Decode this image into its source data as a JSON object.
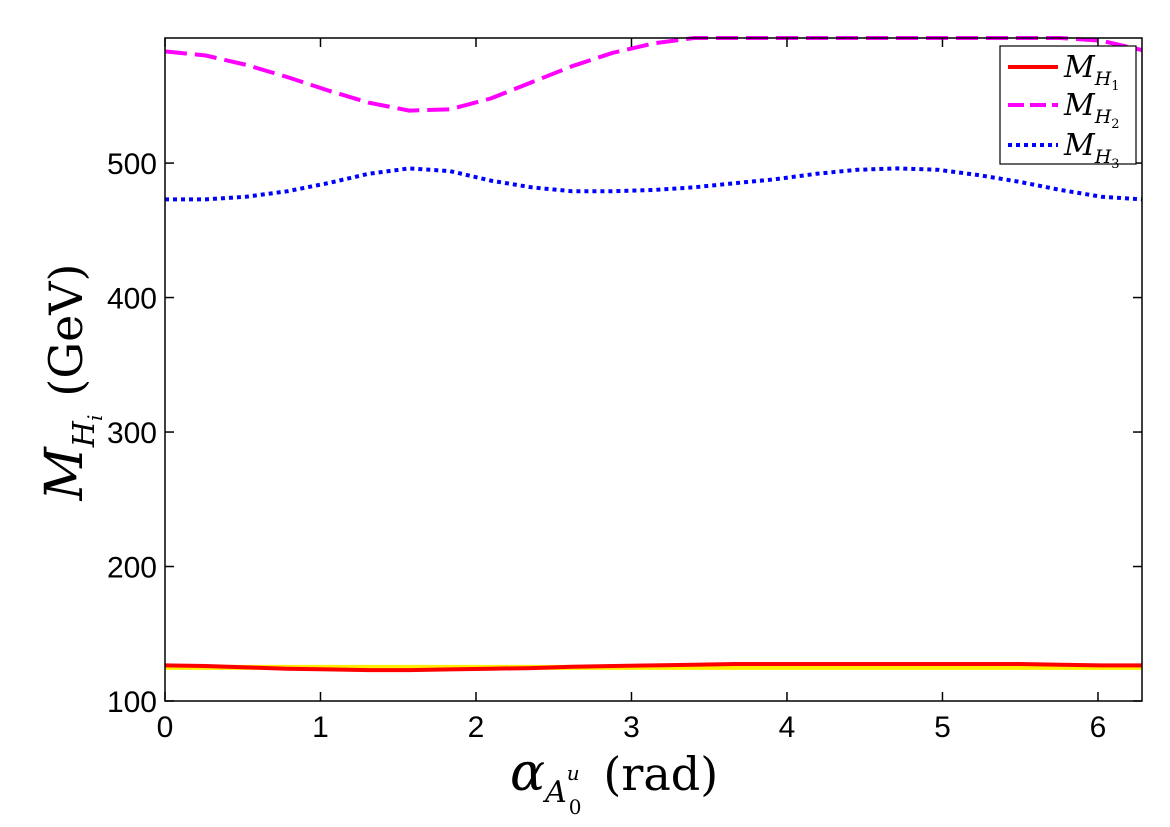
{
  "chart_data": {
    "type": "line",
    "title": "",
    "xlabel": {
      "base": "α",
      "sub": "A",
      "sup": "u",
      "subsub": "0",
      "unit": "(rad)"
    },
    "ylabel": {
      "base": "M",
      "sub": "H",
      "subsub": "i",
      "unit": "(GeV)"
    },
    "xlim": [
      0,
      6.2832
    ],
    "ylim": [
      100,
      593
    ],
    "x_ticks": [
      0,
      1,
      2,
      3,
      4,
      5,
      6
    ],
    "y_ticks": [
      100,
      200,
      300,
      400,
      500
    ],
    "grid": false,
    "legend_position": "top-right",
    "x": [
      0,
      0.2618,
      0.5236,
      0.7854,
      1.0472,
      1.309,
      1.5708,
      1.8326,
      2.0944,
      2.3562,
      2.618,
      2.8798,
      3.1416,
      3.4034,
      3.6652,
      3.927,
      4.1888,
      4.4506,
      4.7124,
      4.9742,
      5.236,
      5.4978,
      5.7596,
      6.0214,
      6.2832
    ],
    "series": [
      {
        "name": "M_{H_1}",
        "legend": {
          "base": "M",
          "sub": "H",
          "subsub": "1"
        },
        "color": "#ff0000",
        "style": "solid",
        "values": [
          126.5,
          126,
          125,
          124,
          123.5,
          123,
          123,
          123.5,
          124,
          124.5,
          125.5,
          126,
          126.5,
          127,
          127.5,
          127.5,
          127.5,
          127.5,
          127.5,
          127.5,
          127.5,
          127.5,
          127,
          126.5,
          126.5
        ]
      },
      {
        "name": "M_{H_2}",
        "legend": {
          "base": "M",
          "sub": "H",
          "subsub": "2"
        },
        "color": "#ff00ff",
        "style": "dashed",
        "values": [
          583,
          580,
          573,
          564,
          554,
          545,
          539,
          540,
          548,
          560,
          572,
          582,
          589,
          593,
          593,
          593,
          593,
          593,
          593,
          593,
          593,
          593,
          593,
          591,
          584
        ]
      },
      {
        "name": "M_{H_3}",
        "legend": {
          "base": "M",
          "sub": "H",
          "subsub": "3"
        },
        "color": "#0000ff",
        "style": "dotted",
        "values": [
          473,
          473,
          475,
          479,
          485,
          492,
          496,
          494,
          487,
          482,
          479,
          479,
          480,
          482,
          485,
          488,
          492,
          495,
          496,
          495,
          491,
          486,
          480,
          475,
          473
        ]
      },
      {
        "name": "",
        "color": "#ffee00",
        "style": "band",
        "values": [
          125,
          125,
          125,
          125,
          125,
          125,
          125,
          125,
          125,
          125,
          125,
          125,
          125,
          125,
          125,
          125,
          125,
          125,
          125,
          125,
          125,
          125,
          125,
          125,
          125
        ]
      }
    ]
  }
}
